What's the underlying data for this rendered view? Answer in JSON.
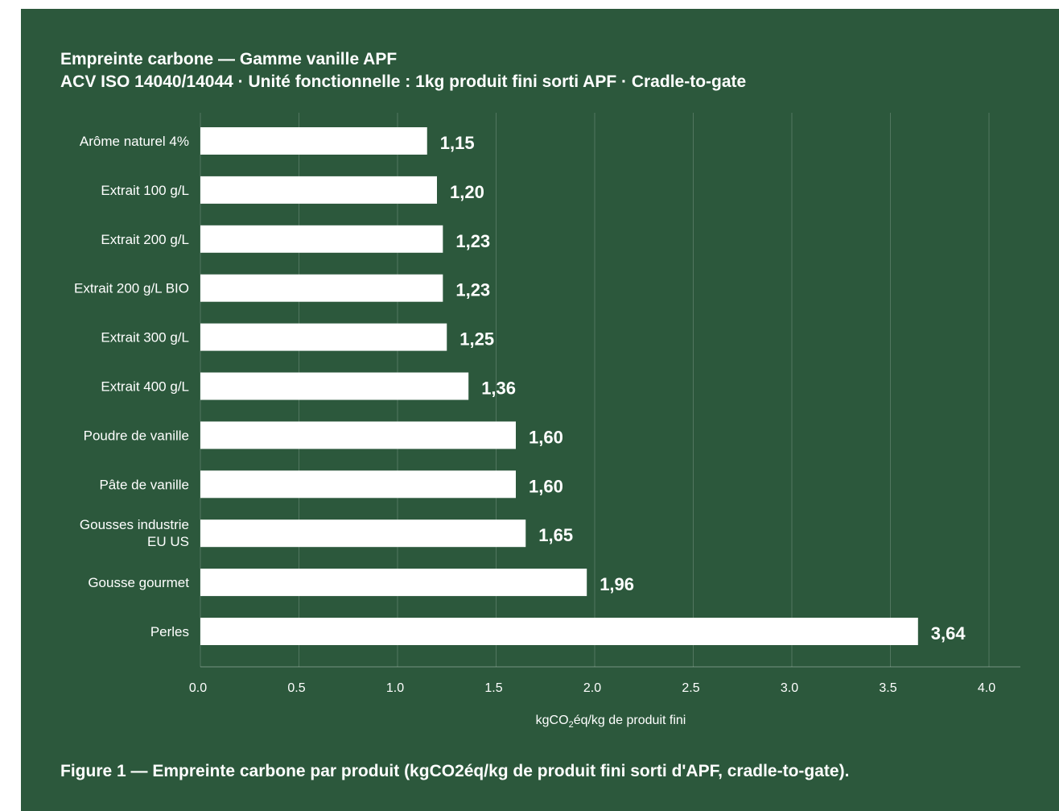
{
  "chart_data": {
    "type": "bar",
    "orientation": "horizontal",
    "title": "Empreinte carbone — Gamme vanille APF",
    "subtitle": "ACV ISO 14040/14044 · Unité fonctionnelle : 1kg produit fini sorti APF · Cradle-to-gate",
    "categories": [
      "Arôme naturel 4%",
      "Extrait 100 g/L",
      "Extrait 200 g/L",
      "Extrait 200 g/L BIO",
      "Extrait 300 g/L",
      "Extrait 400 g/L",
      "Poudre de vanille",
      "Pâte de vanille",
      "Gousses industrie\nEU US",
      "Gousse gourmet",
      "Perles"
    ],
    "values": [
      1.15,
      1.2,
      1.23,
      1.23,
      1.25,
      1.36,
      1.6,
      1.6,
      1.65,
      1.96,
      3.64
    ],
    "data_labels": [
      "1,15",
      "1,20",
      "1,23",
      "1,23",
      "1,25",
      "1,36",
      "1,60",
      "1,60",
      "1,65",
      "1,96",
      "3,64"
    ],
    "xlabel": "kgCO₂éq/kg de produit fini",
    "ylabel": "",
    "xlim": [
      0,
      4.0
    ],
    "xticks": [
      "0.0",
      "0.5",
      "1.0",
      "1.5",
      "2.0",
      "2.5",
      "3.0",
      "3.5",
      "4.0"
    ],
    "grid": "vertical",
    "legend": "none"
  },
  "caption": "Figure 1 — Empreinte carbone par produit (kgCO2éq/kg de produit fini sorti d'APF, cradle-to-gate).",
  "colors": {
    "background": "#2c583c",
    "bar": "#ffffff",
    "text": "#ffffff"
  }
}
